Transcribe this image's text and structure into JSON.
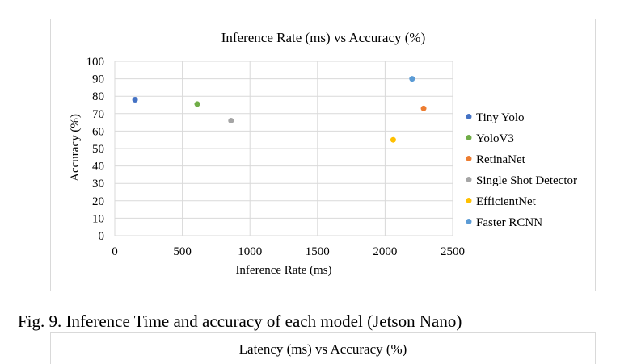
{
  "chart_data": {
    "type": "scatter",
    "title": "Inference Rate (ms) vs Accuracy (%)",
    "xlabel": "Inference Rate (ms)",
    "ylabel": "Accuracy (%)",
    "xlim": [
      0,
      2500
    ],
    "ylim": [
      0,
      100
    ],
    "xticks": [
      0,
      500,
      1000,
      1500,
      2000,
      2500
    ],
    "yticks": [
      0,
      10,
      20,
      30,
      40,
      50,
      60,
      70,
      80,
      90,
      100
    ],
    "grid": true,
    "legend": "right",
    "series": [
      {
        "name": "Tiny Yolo",
        "color": "#4472c4",
        "x": 150,
        "y": 78
      },
      {
        "name": "YoloV3",
        "color": "#70ad47",
        "x": 610,
        "y": 75.5
      },
      {
        "name": "RetinaNet",
        "color": "#ed7d31",
        "x": 2285,
        "y": 73
      },
      {
        "name": "Single Shot Detector",
        "color": "#a5a5a5",
        "x": 860,
        "y": 66
      },
      {
        "name": "EfficientNet",
        "color": "#ffc000",
        "x": 2060,
        "y": 55
      },
      {
        "name": "Faster RCNN",
        "color": "#5b9bd5",
        "x": 2200,
        "y": 90
      }
    ]
  },
  "caption": "Fig. 9.  Inference Time and accuracy of each model (Jetson Nano)",
  "next_chart_title": "Latency (ms) vs Accuracy (%)"
}
